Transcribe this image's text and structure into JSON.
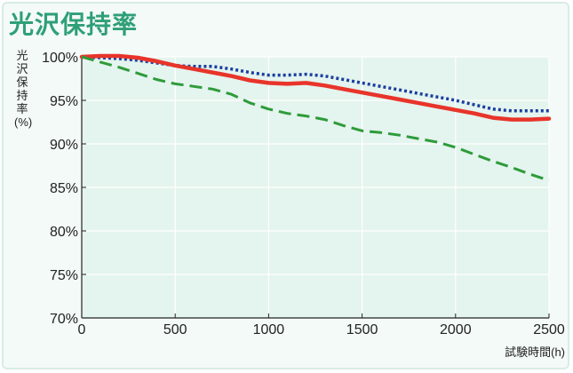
{
  "chart_data": {
    "type": "line",
    "title": "光沢保持率",
    "ylabel": "光沢保持率(%)",
    "xlabel": "試験時間(h)",
    "xlim": [
      0,
      2500
    ],
    "ylim": [
      70,
      100
    ],
    "x_ticks": [
      "0",
      "500",
      "1000",
      "1500",
      "2000",
      "2500"
    ],
    "y_ticks": [
      "70%",
      "75%",
      "80%",
      "85%",
      "90%",
      "95%",
      "100%"
    ],
    "grid": true,
    "series": [
      {
        "style": "dotted",
        "color": "#1a3fa0",
        "x": [
          0,
          100,
          200,
          300,
          400,
          500,
          600,
          700,
          800,
          900,
          1000,
          1100,
          1200,
          1300,
          1400,
          1500,
          1600,
          1700,
          1800,
          1900,
          2000,
          2100,
          2200,
          2300,
          2400,
          2500
        ],
        "y": [
          100,
          99.9,
          99.8,
          99.6,
          99.3,
          99.0,
          98.9,
          98.9,
          98.6,
          98.2,
          97.9,
          97.9,
          98.0,
          97.8,
          97.4,
          97.0,
          96.6,
          96.2,
          95.8,
          95.4,
          95.0,
          94.5,
          94.0,
          93.8,
          93.8,
          93.8
        ]
      },
      {
        "style": "solid",
        "color": "#e8342a",
        "x": [
          0,
          100,
          200,
          300,
          400,
          500,
          600,
          700,
          800,
          900,
          1000,
          1100,
          1200,
          1300,
          1400,
          1500,
          1600,
          1700,
          1800,
          1900,
          2000,
          2100,
          2200,
          2300,
          2400,
          2500
        ],
        "y": [
          100,
          100.1,
          100.1,
          99.9,
          99.5,
          99.0,
          98.6,
          98.2,
          97.8,
          97.3,
          97.0,
          96.9,
          97.0,
          96.7,
          96.3,
          95.9,
          95.5,
          95.1,
          94.7,
          94.3,
          93.9,
          93.5,
          93.0,
          92.8,
          92.8,
          92.9
        ]
      },
      {
        "style": "dashed",
        "color": "#2e9b3a",
        "x": [
          0,
          100,
          200,
          300,
          400,
          500,
          600,
          700,
          800,
          900,
          1000,
          1100,
          1200,
          1300,
          1400,
          1500,
          1600,
          1700,
          1800,
          1900,
          2000,
          2100,
          2200,
          2300,
          2400,
          2500
        ],
        "y": [
          100,
          99.4,
          98.8,
          98.1,
          97.4,
          96.9,
          96.6,
          96.3,
          95.7,
          94.7,
          94.0,
          93.5,
          93.2,
          92.8,
          92.1,
          91.5,
          91.3,
          91.0,
          90.6,
          90.2,
          89.6,
          88.8,
          88.0,
          87.3,
          86.5,
          85.8
        ]
      }
    ]
  }
}
